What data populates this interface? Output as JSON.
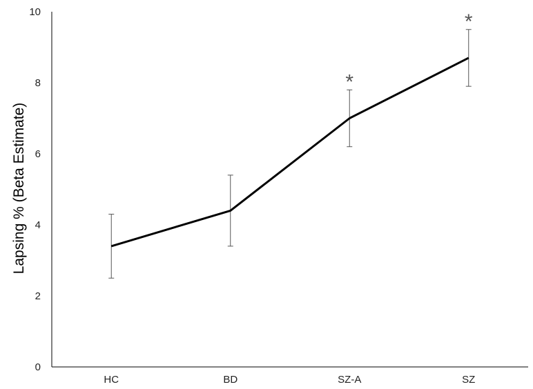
{
  "chart_data": {
    "type": "line",
    "title": "",
    "xlabel": "",
    "ylabel": "Lapsing % (Beta Estimate)",
    "ylim": [
      0,
      10
    ],
    "yticks": [
      0,
      2,
      4,
      6,
      8,
      10
    ],
    "grid": false,
    "legend": "none",
    "categories": [
      "HC",
      "BD",
      "SZ-A",
      "SZ"
    ],
    "series": [
      {
        "values": [
          3.4,
          4.4,
          7.0,
          8.7
        ],
        "error_low": [
          2.5,
          3.4,
          6.2,
          7.9
        ],
        "error_high": [
          4.3,
          5.4,
          7.8,
          9.5
        ],
        "color": "#000000"
      }
    ],
    "annotations": [
      {
        "category": "SZ-A",
        "text": "*"
      },
      {
        "category": "SZ",
        "text": "*"
      }
    ]
  }
}
